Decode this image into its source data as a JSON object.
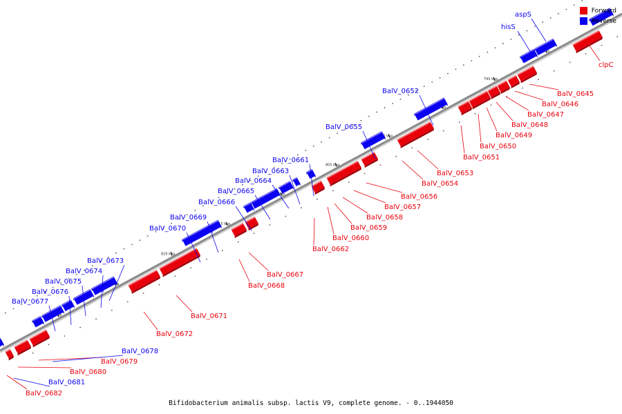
{
  "caption": "Bifidobacterium animalis subsp. lactis V9, complete genome. - 0..1944050",
  "legend": [
    {
      "label": "Forward",
      "color": "#e8000b"
    },
    {
      "label": "Reverse",
      "color": "#0b00f0"
    }
  ],
  "colors": {
    "forward": "#e8000b",
    "reverse": "#0b00f0",
    "backbone": "#8a8a8a"
  },
  "kbp_markers": [
    "785 kbp",
    "790 kbp",
    "795 kbp",
    "800 kbp",
    "805 kbp",
    "810 kbp",
    "815 kbp",
    "820 kbp",
    "825 kbp",
    "830 kbp"
  ],
  "genes_forward": [
    "clpC",
    "BalV_0645",
    "BalV_0646",
    "BalV_0647",
    "BalV_0648",
    "BalV_0649",
    "BalV_0650",
    "BalV_0651",
    "BalV_0653",
    "BalV_0654",
    "BalV_0656",
    "BalV_0657",
    "BalV_0658",
    "BalV_0659",
    "BalV_0660",
    "BalV_0662",
    "BalV_0667",
    "BalV_0668",
    "BalV_0671",
    "BalV_0672",
    "BalV_0679",
    "BalV_0680",
    "BalV_0682"
  ],
  "genes_reverse": [
    "aspS",
    "hisS",
    "BalV_0652",
    "BalV_0655",
    "BalV_0661",
    "BalV_0663",
    "BalV_0664",
    "BalV_0665",
    "BalV_0666",
    "BalV_0669",
    "BalV_0670",
    "BalV_0673",
    "BalV_0674",
    "BalV_0675",
    "BalV_0676",
    "BalV_0677",
    "BalV_0678",
    "BalV_0681"
  ]
}
